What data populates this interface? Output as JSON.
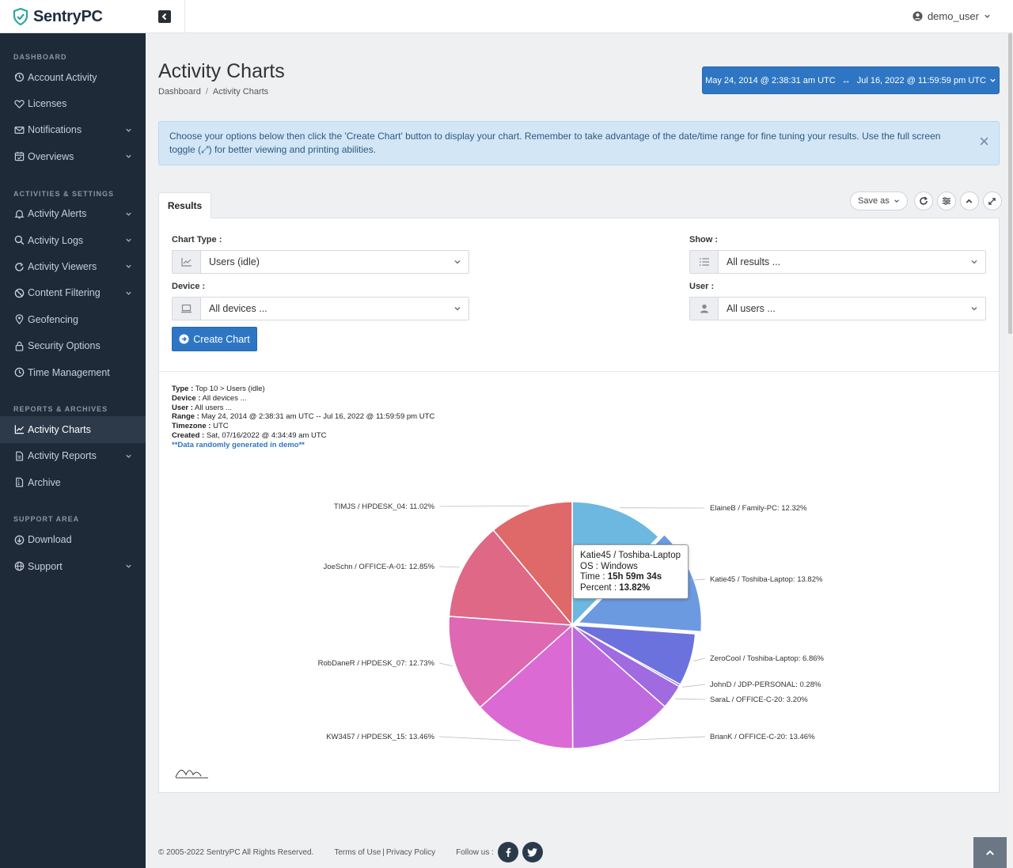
{
  "header": {
    "logo_text": "SentryPC",
    "user_name": "demo_user"
  },
  "sidebar": {
    "sections": [
      {
        "title": "DASHBOARD",
        "items": [
          {
            "label": "Account Activity",
            "icon": "history-icon",
            "chevron": false
          },
          {
            "label": "Licenses",
            "icon": "heart-icon",
            "chevron": false
          },
          {
            "label": "Notifications",
            "icon": "mail-icon",
            "chevron": true
          },
          {
            "label": "Overviews",
            "icon": "calendar-check-icon",
            "chevron": true
          }
        ]
      },
      {
        "title": "ACTIVITIES & SETTINGS",
        "items": [
          {
            "label": "Activity Alerts",
            "icon": "bell-icon",
            "chevron": true
          },
          {
            "label": "Activity Logs",
            "icon": "search-icon",
            "chevron": true
          },
          {
            "label": "Activity Viewers",
            "icon": "refresh-icon",
            "chevron": true
          },
          {
            "label": "Content Filtering",
            "icon": "ban-icon",
            "chevron": true
          },
          {
            "label": "Geofencing",
            "icon": "map-pin-icon",
            "chevron": false
          },
          {
            "label": "Security Options",
            "icon": "lock-icon",
            "chevron": false
          },
          {
            "label": "Time Management",
            "icon": "clock-icon",
            "chevron": false
          }
        ]
      },
      {
        "title": "REPORTS & ARCHIVES",
        "items": [
          {
            "label": "Activity Charts",
            "icon": "chart-line-icon",
            "chevron": false,
            "active": true
          },
          {
            "label": "Activity Reports",
            "icon": "file-icon",
            "chevron": true
          },
          {
            "label": "Archive",
            "icon": "file-archive-icon",
            "chevron": false
          }
        ]
      },
      {
        "title": "SUPPORT AREA",
        "items": [
          {
            "label": "Download",
            "icon": "download-icon",
            "chevron": false
          },
          {
            "label": "Support",
            "icon": "globe-icon",
            "chevron": true
          }
        ]
      }
    ]
  },
  "page": {
    "title": "Activity Charts",
    "breadcrumb": [
      "Dashboard",
      "Activity Charts"
    ],
    "date_range": {
      "start": "May 24, 2014 @ 2:38:31 am UTC",
      "arrow": "↔",
      "end": "Jul 16, 2022 @ 11:59:59 pm UTC"
    },
    "alert_text": "Choose your options below then click the 'Create Chart' button to display your chart.  Remember to take advantage of the date/time range for fine tuning your results.  Use the full screen toggle (⤢) for better viewing and printing abilities."
  },
  "results": {
    "tab_label": "Results",
    "save_as_label": "Save as",
    "chart_type_label": "Chart Type :",
    "chart_type_value": "Users (idle)",
    "device_label": "Device :",
    "device_value": "All devices ...",
    "show_label": "Show :",
    "show_value": "All results ...",
    "user_label": "User :",
    "user_value": "All users ...",
    "create_button": "Create Chart"
  },
  "meta": [
    {
      "key": "Type :",
      "value": " Top 10 > Users (idle)"
    },
    {
      "key": "Device :",
      "value": " All devices ..."
    },
    {
      "key": "User :",
      "value": " All users ..."
    },
    {
      "key": "Range :",
      "value": " May 24, 2014 @ 2:38:31 am UTC -- Jul 16, 2022 @ 11:59:59 pm UTC"
    },
    {
      "key": "Timezone :",
      "value": " UTC"
    },
    {
      "key": "Created :",
      "value": " Sat, 07/16/2022 @ 4:34:49 am UTC"
    }
  ],
  "demo_note": "**Data randomly generated in demo**",
  "chart_data": {
    "type": "pie",
    "slices": [
      {
        "label": "ElaineB / Family-PC: 12.32%",
        "value": 12.32,
        "color": "#6cb8e0"
      },
      {
        "label": "Katie45 / Toshiba-Laptop: 13.82%",
        "value": 13.82,
        "color": "#6c9ae1",
        "highlighted": true
      },
      {
        "label": "ZeroCool / Toshiba-Laptop: 6.86%",
        "value": 6.86,
        "color": "#6b72dd"
      },
      {
        "label": "JohnD / JDP-PERSONAL: 0.28%",
        "value": 0.28,
        "color": "#8d6ee0"
      },
      {
        "label": "SaraL / OFFICE-C-20: 3.20%",
        "value": 3.2,
        "color": "#a06ae0"
      },
      {
        "label": "BrianK / OFFICE-C-20: 13.46%",
        "value": 13.46,
        "color": "#c06ae0"
      },
      {
        "label": "KW3457 / HPDESK_15: 13.46%",
        "value": 13.46,
        "color": "#db6ad4"
      },
      {
        "label": "RobDaneR / HPDESK_07: 12.73%",
        "value": 12.73,
        "color": "#de68b2"
      },
      {
        "label": "JoeSchn / OFFICE-A-01: 12.85%",
        "value": 12.85,
        "color": "#df6886"
      },
      {
        "label": "TIMJS / HPDESK_04: 11.02%",
        "value": 11.02,
        "color": "#df6868"
      }
    ]
  },
  "tooltip": {
    "title": "Katie45 / Toshiba-Laptop",
    "os_label": "OS :",
    "os_value": "Windows",
    "time_label": "Time :",
    "time_value": "15h 59m 34s",
    "percent_label": "Percent :",
    "percent_value": "13.82%"
  },
  "footer": {
    "copyright": "© 2005-2022 SentryPC All Rights Reserved.",
    "terms": "Terms of Use",
    "privacy": "Privacy Policy",
    "follow": "Follow us :"
  }
}
